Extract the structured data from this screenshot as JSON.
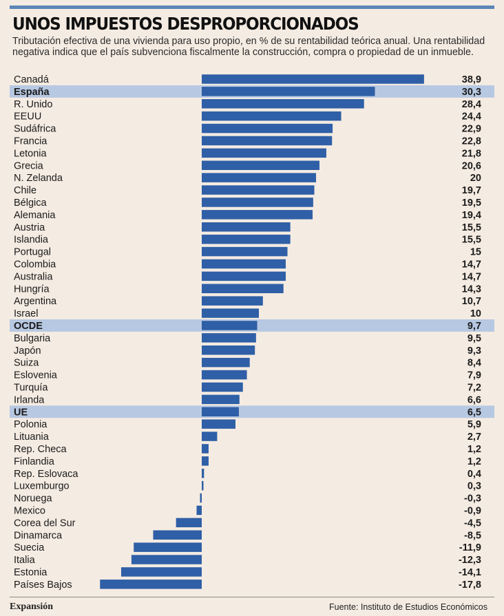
{
  "header": {
    "title": "UNOS IMPUESTOS DESPROPORCIONADOS",
    "subtitle": "Tributación efectiva de una vivienda para uso propio, en % de su rentabilidad teórica anual. Una rentabilidad negativa indica que el país subvenciona fiscalmente la construcción, compra o propiedad de un inmueble."
  },
  "footer": {
    "brand": "Expansión",
    "source": "Fuente: Instituto de Estudios Económicos"
  },
  "colors": {
    "bar": "#2f5fa6",
    "highlight_row": "#b7c8e2",
    "background": "#f4ebe2",
    "rule": "#5b86b8"
  },
  "chart_data": {
    "type": "bar",
    "orientation": "horizontal",
    "grid": false,
    "legend": "none",
    "xlim": [
      -17.8,
      38.9
    ],
    "categories": [
      "Canadá",
      "España",
      "R. Unido",
      "EEUU",
      "Sudáfrica",
      "Francia",
      "Letonia",
      "Grecia",
      "N. Zelanda",
      "Chile",
      "Bélgica",
      "Alemania",
      "Austria",
      "Islandia",
      "Portugal",
      "Colombia",
      "Australia",
      "Hungría",
      "Argentina",
      "Israel",
      "OCDE",
      "Bulgaria",
      "Japón",
      "Suiza",
      "Eslovenia",
      "Turquía",
      "Irlanda",
      "UE",
      "Polonia",
      "Lituania",
      "Rep. Checa",
      "Finlandia",
      "Rep. Eslovaca",
      "Luxemburgo",
      "Noruega",
      "Mexico",
      "Corea del Sur",
      "Dinamarca",
      "Suecia",
      "Italia",
      "Estonia",
      "Países Bajos"
    ],
    "values": [
      38.9,
      30.3,
      28.4,
      24.4,
      22.9,
      22.8,
      21.8,
      20.6,
      20,
      19.7,
      19.5,
      19.4,
      15.5,
      15.5,
      15,
      14.7,
      14.7,
      14.3,
      10.7,
      10,
      9.7,
      9.5,
      9.3,
      8.4,
      7.9,
      7.2,
      6.6,
      6.5,
      5.9,
      2.7,
      1.2,
      1.2,
      0.4,
      0.3,
      -0.3,
      -0.9,
      -4.5,
      -8.5,
      -11.9,
      -12.3,
      -14.1,
      -17.8
    ],
    "value_labels": [
      "38,9",
      "30,3",
      "28,4",
      "24,4",
      "22,9",
      "22,8",
      "21,8",
      "20,6",
      "20",
      "19,7",
      "19,5",
      "19,4",
      "15,5",
      "15,5",
      "15",
      "14,7",
      "14,7",
      "14,3",
      "10,7",
      "10",
      "9,7",
      "9,5",
      "9,3",
      "8,4",
      "7,9",
      "7,2",
      "6,6",
      "6,5",
      "5,9",
      "2,7",
      "1,2",
      "1,2",
      "0,4",
      "0,3",
      "-0,3",
      "-0,9",
      "-4,5",
      "-8,5",
      "-11,9",
      "-12,3",
      "-14,1",
      "-17,8"
    ],
    "highlighted": [
      "España",
      "OCDE",
      "UE"
    ]
  }
}
